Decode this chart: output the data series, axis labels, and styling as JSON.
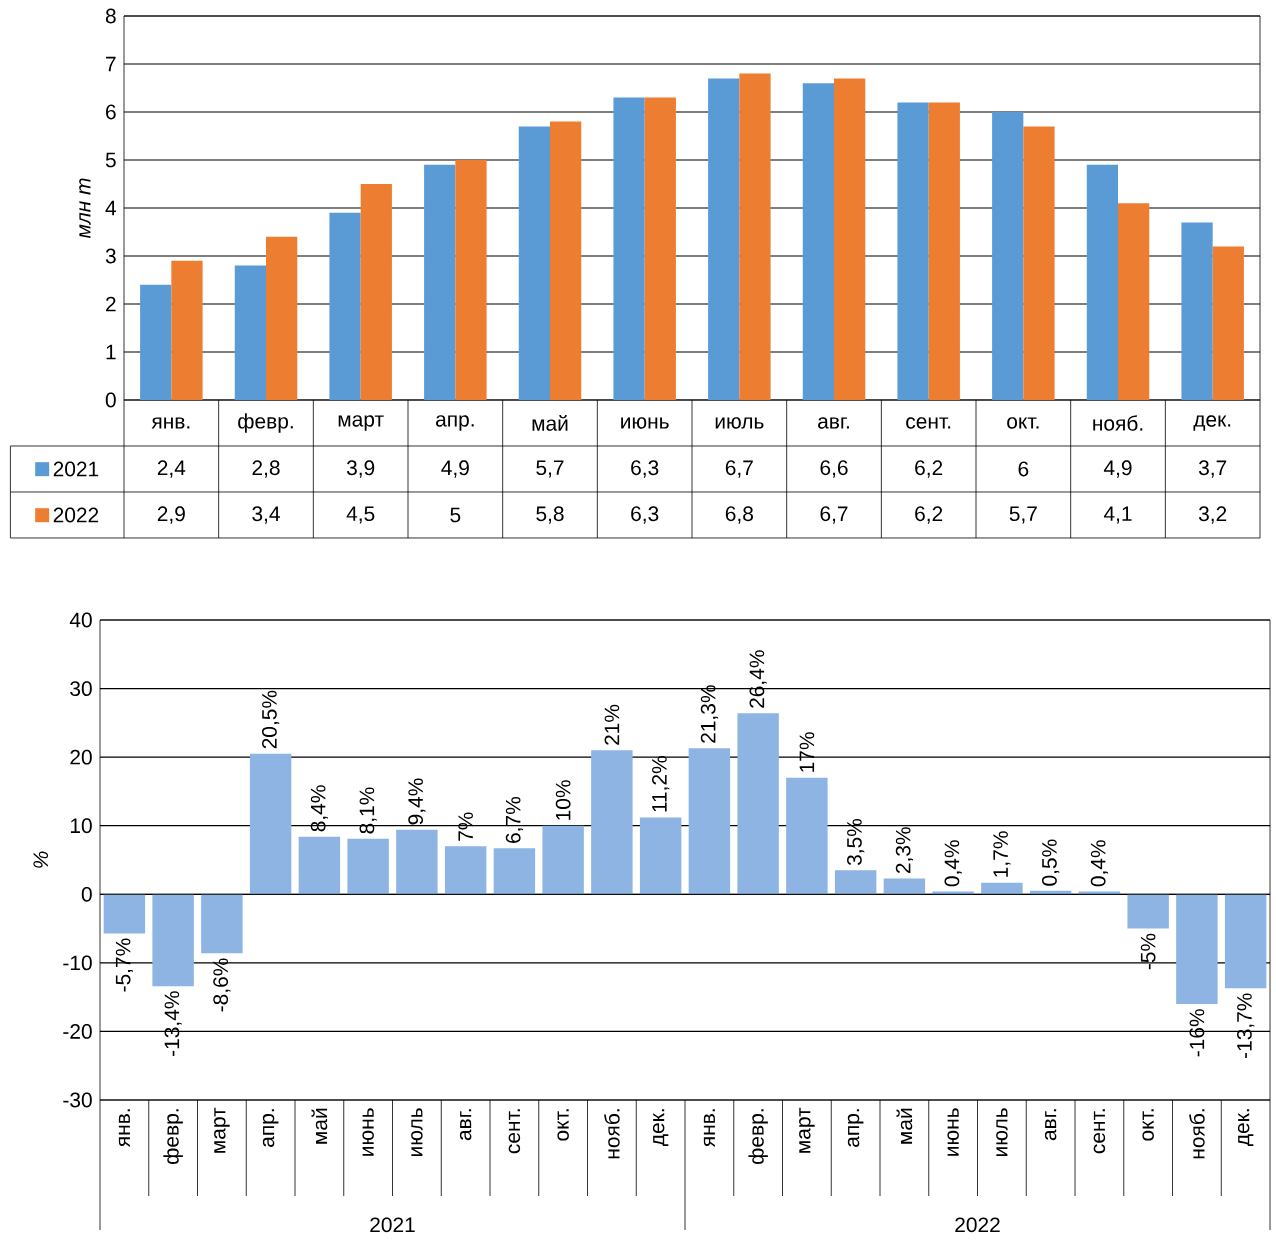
{
  "chart_data": [
    {
      "type": "bar",
      "ylabel": "млн т",
      "ylim": [
        0,
        8
      ],
      "yticks": [
        0,
        1,
        2,
        3,
        4,
        5,
        6,
        7,
        8
      ],
      "grid": "y",
      "legend": "bottom left",
      "categories": [
        "янв.",
        "февр.",
        "март",
        "апр.",
        "май",
        "июнь",
        "июль",
        "авг.",
        "сент.",
        "окт.",
        "нояб.",
        "дек."
      ],
      "series": [
        {
          "name": "2021",
          "color": "#5b9bd5",
          "values": [
            2.4,
            2.8,
            3.9,
            4.9,
            5.7,
            6.3,
            6.7,
            6.6,
            6.2,
            6,
            4.9,
            3.7
          ],
          "value_labels": [
            "2,4",
            "2,8",
            "3,9",
            "4,9",
            "5,7",
            "6,3",
            "6,7",
            "6,6",
            "6,2",
            "6",
            "4,9",
            "3,7"
          ]
        },
        {
          "name": "2022",
          "color": "#ed7d31",
          "values": [
            2.9,
            3.4,
            4.5,
            5,
            5.8,
            6.3,
            6.8,
            6.7,
            6.2,
            5.7,
            4.1,
            3.2
          ],
          "value_labels": [
            "2,9",
            "3,4",
            "4,5",
            "5",
            "5,8",
            "6,3",
            "6,8",
            "6,7",
            "6,2",
            "5,7",
            "4,1",
            "3,2"
          ]
        }
      ]
    },
    {
      "type": "bar",
      "ylabel": "%",
      "ylim": [
        -30,
        40
      ],
      "yticks": [
        -30,
        -20,
        -10,
        0,
        10,
        20,
        30,
        40
      ],
      "grid": "y",
      "color": "#8db4e2",
      "categories": [
        "янв.",
        "февр.",
        "март",
        "апр.",
        "май",
        "июнь",
        "июль",
        "авг.",
        "сент.",
        "окт.",
        "нояб.",
        "дек.",
        "янв.",
        "февр.",
        "март",
        "апр.",
        "май",
        "июнь",
        "июль",
        "авг.",
        "сент.",
        "окт.",
        "нояб.",
        "дек."
      ],
      "values": [
        -5.7,
        -13.4,
        -8.6,
        20.5,
        8.4,
        8.1,
        9.4,
        7,
        6.7,
        10,
        21,
        11.2,
        21.3,
        26.4,
        17,
        3.5,
        2.3,
        0.4,
        1.7,
        0.5,
        0.4,
        -5,
        -16,
        -13.7
      ],
      "value_labels": [
        "-5,7%",
        "-13,4%",
        "-8,6%",
        "20,5%",
        "8,4%",
        "8,1%",
        "9,4%",
        "7%",
        "6,7%",
        "10%",
        "21%",
        "11,2%",
        "21,3%",
        "26,4%",
        "17%",
        "3,5%",
        "2,3%",
        "0,4%",
        "1,7%",
        "0,5%",
        "0,4%",
        "-5%",
        "-16%",
        "-13,7%"
      ],
      "annotations": [
        "2021",
        "2022"
      ]
    }
  ]
}
